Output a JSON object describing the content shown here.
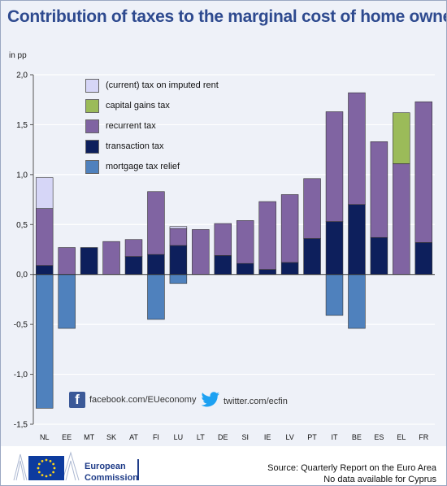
{
  "title": "Contribution of taxes to the marginal cost of home ownership",
  "unit": "in pp",
  "chart_data": {
    "type": "bar",
    "stacked": true,
    "categories": [
      "NL",
      "EE",
      "MT",
      "SK",
      "AT",
      "FI",
      "LU",
      "LT",
      "DE",
      "SI",
      "IE",
      "LV",
      "PT",
      "IT",
      "BE",
      "ES",
      "EL",
      "FR"
    ],
    "series": [
      {
        "name": "(current) tax on imputed rent",
        "color": "#d6d6f7",
        "values": [
          0.31,
          0,
          0,
          0,
          0,
          0,
          0.02,
          0,
          0,
          0,
          0,
          0,
          0,
          0,
          0,
          0,
          0,
          0
        ]
      },
      {
        "name": "capital gains tax",
        "color": "#9bbb59",
        "values": [
          0,
          0,
          0,
          0,
          0,
          0,
          0,
          0,
          0,
          0,
          0,
          0,
          0,
          0,
          0,
          0,
          0.51,
          0
        ]
      },
      {
        "name": "recurrent tax",
        "color": "#8064a2",
        "values": [
          0.57,
          0.27,
          0,
          0.33,
          0.17,
          0.63,
          0.17,
          0.45,
          0.32,
          0.43,
          0.68,
          0.68,
          0.6,
          1.1,
          1.12,
          0.96,
          1.11,
          1.41
        ]
      },
      {
        "name": "transaction tax",
        "color": "#0d1f5c",
        "values": [
          0.09,
          0,
          0.27,
          0,
          0.18,
          0.2,
          0.29,
          0,
          0.19,
          0.11,
          0.05,
          0.12,
          0.36,
          0.53,
          0.7,
          0.37,
          0,
          0.32
        ]
      },
      {
        "name": "mortgage tax relief",
        "color": "#4f81bd",
        "values": [
          -1.34,
          -0.54,
          0,
          0,
          0,
          -0.45,
          -0.09,
          0,
          0,
          0,
          0,
          0,
          0,
          -0.41,
          -0.54,
          0,
          0,
          0
        ]
      }
    ],
    "ylim": [
      -1.5,
      2.0
    ],
    "yticks": [
      "2,0",
      "1,5",
      "1,0",
      "0,5",
      "0,0",
      "-0,5",
      "-1,0",
      "-1,5"
    ],
    "ytick_values": [
      2.0,
      1.5,
      1.0,
      0.5,
      0.0,
      -0.5,
      -1.0,
      -1.5
    ],
    "grid": true,
    "legend_position": "top-left"
  },
  "social": {
    "facebook": "facebook.com/EUeconomy",
    "twitter": "twitter.com/ecfin"
  },
  "footer": {
    "org_line1": "European",
    "org_line2": "Commission",
    "source_line1": "Source: Quarterly Report on the Euro Area",
    "source_line2": "No data available for Cyprus"
  }
}
